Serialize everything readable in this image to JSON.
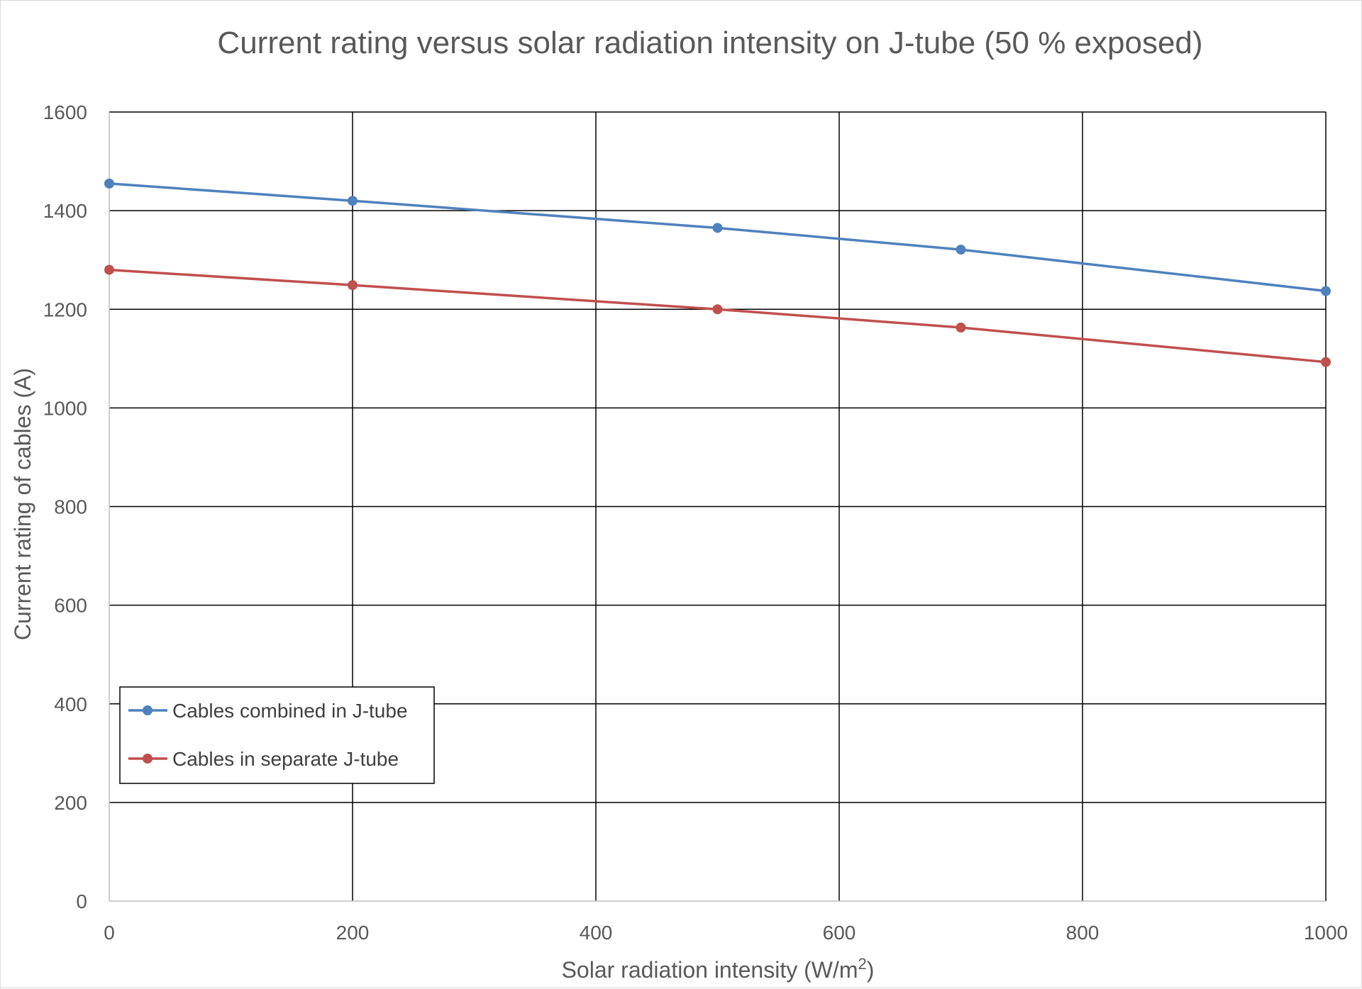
{
  "chart_data": {
    "type": "line",
    "title": "Current rating versus solar radiation intensity on J-tube (50 % exposed)",
    "xlabel": "Solar radiation intensity (W/m",
    "xlabel_superscript": "2",
    "xlabel_suffix": ")",
    "ylabel": "Current rating of cables (A)",
    "xlim": [
      0,
      1000
    ],
    "ylim": [
      0,
      1600
    ],
    "x_ticks": [
      "0",
      "200",
      "400",
      "600",
      "800",
      "1000"
    ],
    "y_ticks": [
      "0",
      "200",
      "400",
      "600",
      "800",
      "1000",
      "1200",
      "1400",
      "1600"
    ],
    "grid": true,
    "legend_position": "bottom-left",
    "series": [
      {
        "name": "Cables combined in J-tube",
        "color": "#4f81bd",
        "x": [
          0,
          200,
          500,
          700,
          1000
        ],
        "y": [
          1455,
          1420,
          1365,
          1321,
          1237
        ]
      },
      {
        "name": "Cables in separate J-tube",
        "color": "#c0504d",
        "x": [
          0,
          200,
          500,
          700,
          1000
        ],
        "y": [
          1280,
          1249,
          1200,
          1163,
          1093
        ]
      }
    ]
  }
}
